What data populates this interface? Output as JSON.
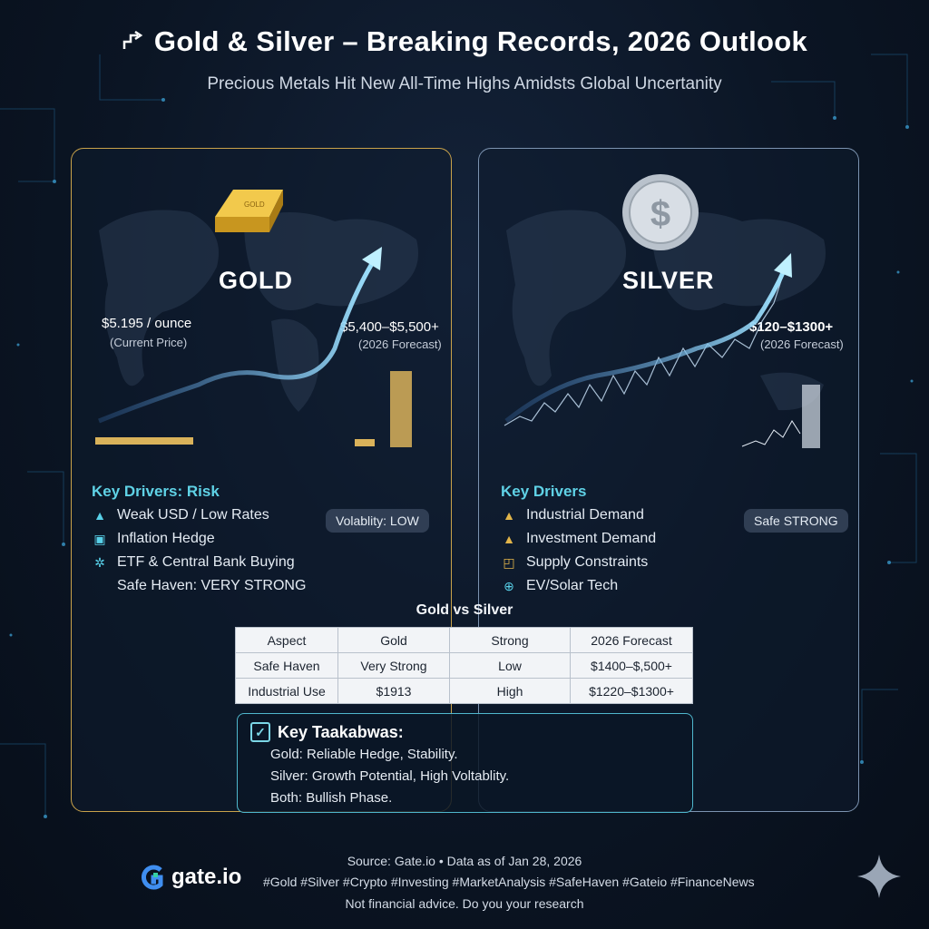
{
  "header": {
    "icon": "trend-arrow-icon",
    "title": "Gold & Silver – Breaking Records, 2026 Outlook",
    "subtitle": "Precious Metals Hit New All-Time Highs Amidsts Global Uncertanity"
  },
  "gold": {
    "name": "GOLD",
    "bar_label": "GOLD",
    "current_price": "$5.195 / ounce",
    "current_note": "(Current Price)",
    "forecast": "$5,400–$5,500+",
    "forecast_note": "(2026 Forecast)",
    "drivers_title": "Key Drivers: Risk",
    "drivers": [
      {
        "icon": "warning-icon",
        "label": "Weak USD / Low Rates"
      },
      {
        "icon": "dollar-chip-icon",
        "label": "Inflation Hedge"
      },
      {
        "icon": "bank-icon",
        "label": "ETF & Central Bank Buying"
      },
      {
        "icon": "",
        "label": "Safe Haven: VERY STRONG"
      }
    ],
    "pill": "Volablity: LOW",
    "accent": "#c9a24a"
  },
  "silver": {
    "name": "SILVER",
    "forecast": "$120–$1300+",
    "forecast_note": "(2026 Forecast)",
    "drivers_title": "Key Drivers",
    "drivers": [
      {
        "icon": "warning-icon",
        "label": "Industrial Demand"
      },
      {
        "icon": "warning-icon",
        "label": "Investment Demand"
      },
      {
        "icon": "chart-icon",
        "label": "Supply Constraints"
      },
      {
        "icon": "tech-icon",
        "label": "EV/Solar Tech"
      }
    ],
    "pill": "Safe STRONG",
    "accent": "#7c93b0"
  },
  "comparison": {
    "caption": "Gold vs Silver",
    "headers": [
      "Aspect",
      "Gold",
      "Strong",
      "2026 Forecast"
    ],
    "rows": [
      [
        "Safe Haven",
        "Very Strong",
        "Low",
        "$1400–$,500+"
      ],
      [
        "Industrial Use",
        "$1913",
        "High",
        "$1220–$1300+"
      ]
    ]
  },
  "takeaways": {
    "title": "Key Taakabwas:",
    "lines": [
      "Gold: Reliable Hedge, Stability.",
      "Silver: Growth Potential, High Voltablity.",
      "Both: Bullish Phase."
    ]
  },
  "footer": {
    "source": "Source: Gate.io • Data as of Jan 28, 2026",
    "brand": "gate.io",
    "hashtags": "#Gold #Silver #Crypto #Investing #MarketAnalysis #SafeHaven #Gateio #FinanceNews",
    "disclaimer": "Not financial advice. Do you your research"
  }
}
